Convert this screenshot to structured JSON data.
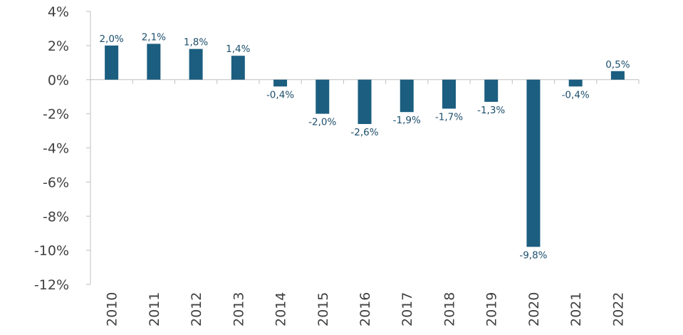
{
  "chart_data": {
    "type": "bar",
    "title": "",
    "xlabel": "",
    "ylabel": "",
    "categories": [
      "2010",
      "2011",
      "2012",
      "2013",
      "2014",
      "2015",
      "2016",
      "2017",
      "2018",
      "2019",
      "2020",
      "2021",
      "2022"
    ],
    "values": [
      2.0,
      2.1,
      1.8,
      1.4,
      -0.4,
      -2.0,
      -2.6,
      -1.9,
      -1.7,
      -1.3,
      -9.8,
      -0.4,
      0.5
    ],
    "data_labels": [
      "2,0%",
      "2,1%",
      "1,8%",
      "1,4%",
      "-0,4%",
      "-2,0%",
      "-2,6%",
      "-1,9%",
      "-1,7%",
      "-1,3%",
      "-9,8%",
      "-0,4%",
      "0,5%"
    ],
    "ylim": [
      -12,
      4
    ],
    "yticks": [
      4,
      2,
      0,
      -2,
      -4,
      -6,
      -8,
      -10,
      -12
    ],
    "ytick_labels": [
      "4%",
      "2%",
      "0%",
      "-2%",
      "-4%",
      "-6%",
      "-8%",
      "-10%",
      "-12%"
    ],
    "grid": false,
    "legend": "none",
    "colors": {
      "bar": "#1b5e80",
      "label": "#1c4e6b",
      "axis": "#bfbfbf",
      "tick_text": "#404040"
    }
  }
}
